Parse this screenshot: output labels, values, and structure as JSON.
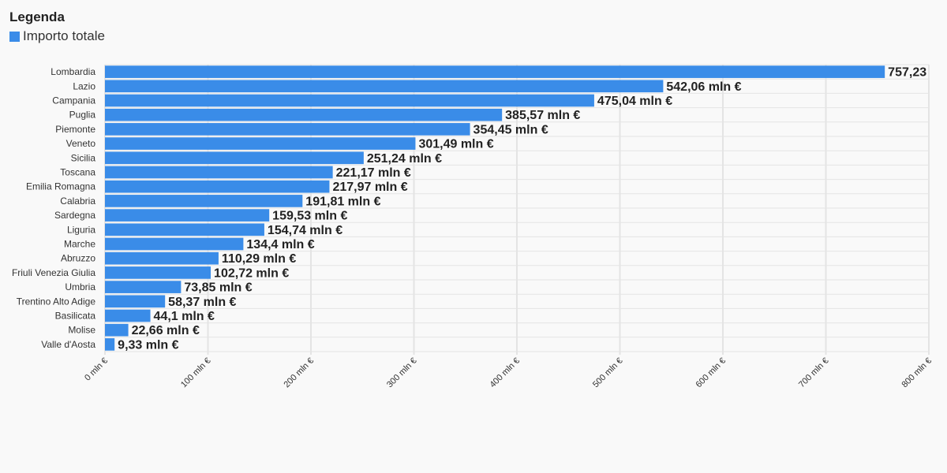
{
  "legend": {
    "title": "Legenda",
    "items": [
      {
        "label": "Importo totale",
        "color": "#3a8ce8"
      }
    ]
  },
  "chart_data": {
    "type": "bar",
    "orientation": "horizontal",
    "categories": [
      "Lombardia",
      "Lazio",
      "Campania",
      "Puglia",
      "Piemonte",
      "Veneto",
      "Sicilia",
      "Toscana",
      "Emilia Romagna",
      "Calabria",
      "Sardegna",
      "Liguria",
      "Marche",
      "Abruzzo",
      "Friuli Venezia Giulia",
      "Umbria",
      "Trentino Alto Adige",
      "Basilicata",
      "Molise",
      "Valle d'Aosta"
    ],
    "series": [
      {
        "name": "Importo totale",
        "values": [
          757.23,
          542.06,
          475.04,
          385.57,
          354.45,
          301.49,
          251.24,
          221.17,
          217.97,
          191.81,
          159.53,
          154.74,
          134.4,
          110.29,
          102.72,
          73.85,
          58.37,
          44.1,
          22.66,
          9.33
        ]
      }
    ],
    "data_labels": [
      "757,23",
      "542,06 mln €",
      "475,04 mln €",
      "385,57 mln €",
      "354,45 mln €",
      "301,49 mln €",
      "251,24 mln €",
      "221,17 mln €",
      "217,97 mln €",
      "191,81 mln €",
      "159,53 mln €",
      "154,74 mln €",
      "134,4 mln €",
      "110,29 mln €",
      "102,72 mln €",
      "73,85 mln €",
      "58,37 mln €",
      "44,1 mln €",
      "22,66 mln €",
      "9,33 mln €"
    ],
    "x_ticks": [
      "0 mln €",
      "100 mln €",
      "200 mln €",
      "300 mln €",
      "400 mln €",
      "500 mln €",
      "600 mln €",
      "700 mln €",
      "800 mln €"
    ],
    "xlim": [
      0,
      800
    ],
    "grid": true,
    "legend_position": "top-left",
    "colors": {
      "bar": "#3a8ce8",
      "grid": "#e4e4e4"
    }
  }
}
